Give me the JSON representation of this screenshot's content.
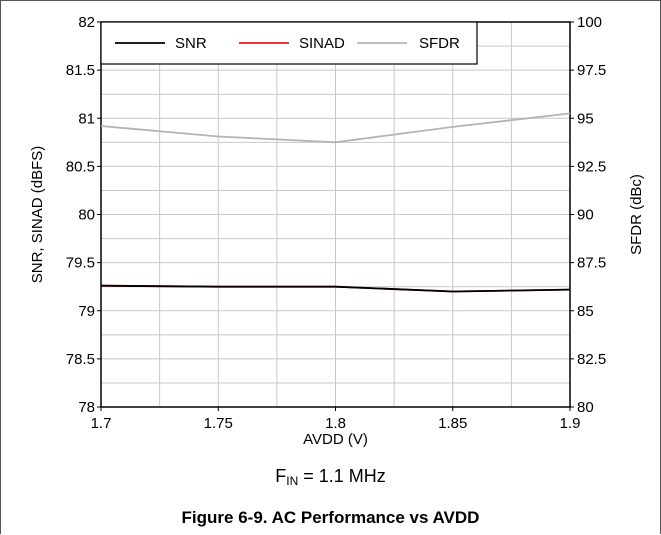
{
  "chart_data": {
    "type": "line",
    "xlabel": "AVDD (V)",
    "ylabel": "SNR, SINAD (dBFS)",
    "y2label": "SFDR (dBc)",
    "x": [
      1.7,
      1.75,
      1.8,
      1.85,
      1.9
    ],
    "x_ticks": [
      "1.7",
      "1.75",
      "1.8",
      "1.85",
      "1.9"
    ],
    "xlim": [
      1.7,
      1.9
    ],
    "ylim": [
      78,
      82
    ],
    "y_ticks": [
      "78",
      "78.5",
      "79",
      "79.5",
      "80",
      "80.5",
      "81",
      "81.5",
      "82"
    ],
    "y2lim": [
      80,
      100
    ],
    "y2_ticks": [
      "80",
      "82.5",
      "85",
      "87.5",
      "90",
      "92.5",
      "95",
      "97.5",
      "100"
    ],
    "grid": true,
    "legend_position": "top-left",
    "series": [
      {
        "name": "SNR",
        "axis": "left",
        "color": "#000000",
        "values": [
          79.26,
          79.25,
          79.25,
          79.2,
          79.22
        ]
      },
      {
        "name": "SINAD",
        "axis": "left",
        "color": "#e8141c",
        "values": [
          79.26,
          79.25,
          79.25,
          79.2,
          79.22
        ]
      },
      {
        "name": "SFDR",
        "axis": "right",
        "color": "#b4b4b4",
        "values": [
          94.6,
          94.05,
          93.75,
          94.55,
          95.25
        ]
      }
    ]
  },
  "note": {
    "prefix": "F",
    "subscript": "IN",
    "suffix": " = 1.1 MHz"
  },
  "caption": "Figure 6-9. AC Performance vs AVDD"
}
